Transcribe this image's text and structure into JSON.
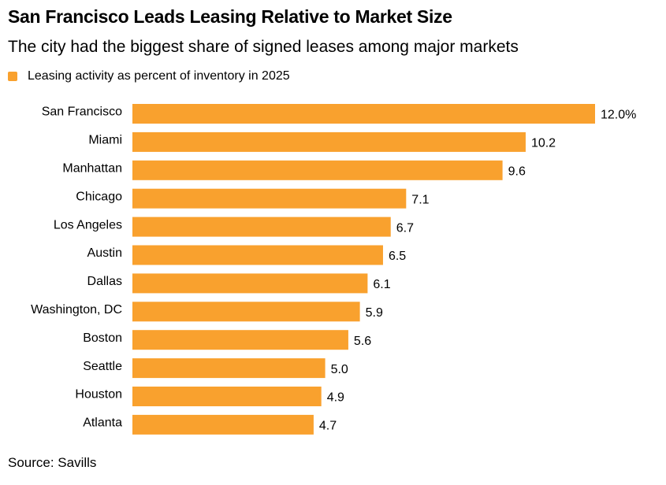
{
  "chart_data": {
    "type": "bar",
    "orientation": "horizontal",
    "title": "San Francisco Leads Leasing Relative to Market Size",
    "subtitle": "The city had the biggest share of signed leases among major markets",
    "legend": "Leasing activity as percent of inventory in 2025",
    "legend_placement": "top-left",
    "categories": [
      "San Francisco",
      "Miami",
      "Manhattan",
      "Chicago",
      "Los Angeles",
      "Austin",
      "Dallas",
      "Washington, DC",
      "Boston",
      "Seattle",
      "Houston",
      "Atlanta"
    ],
    "values": [
      12.0,
      10.2,
      9.6,
      7.1,
      6.7,
      6.5,
      6.1,
      5.9,
      5.6,
      5.0,
      4.9,
      4.7
    ],
    "data_labels": [
      "12.0%",
      "10.2",
      "9.6",
      "7.1",
      "6.7",
      "6.5",
      "6.1",
      "5.9",
      "5.6",
      "5.0",
      "4.9",
      "4.7"
    ],
    "grid": false,
    "source": "Source: Savills",
    "color": "#F9A12E"
  }
}
